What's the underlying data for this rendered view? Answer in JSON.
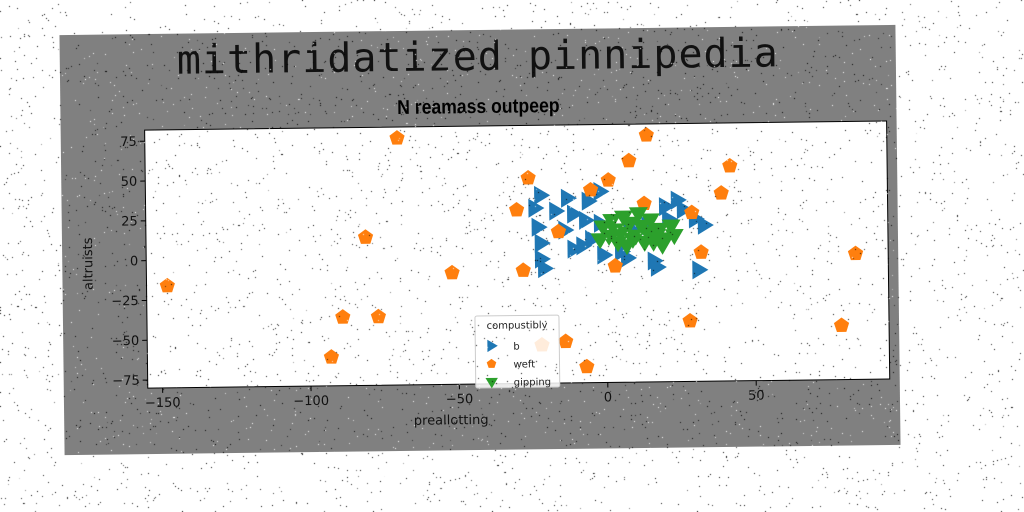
{
  "figure": {
    "suptitle": "mithridatized pinnipedia",
    "background": "#808080"
  },
  "chart_data": {
    "type": "scatter",
    "title": "N reamass outpeep",
    "xlabel": "preallotting",
    "ylabel": "altruists",
    "xlim": [
      -155,
      95
    ],
    "ylim": [
      -80,
      82
    ],
    "xticks": [
      -150,
      -100,
      -50,
      0,
      50
    ],
    "yticks": [
      -75,
      -50,
      -25,
      0,
      25,
      50,
      75
    ],
    "grid": false,
    "legend": {
      "title": "compustibly",
      "placement": "lower-center"
    },
    "series": [
      {
        "name": "b",
        "marker": "triangle-right",
        "color": "#1f77b4",
        "points": [
          [
            -22,
            38
          ],
          [
            -13,
            36
          ],
          [
            -6,
            34
          ],
          [
            -2,
            40
          ],
          [
            -24,
            30
          ],
          [
            -17,
            28
          ],
          [
            -11,
            26
          ],
          [
            -23,
            18
          ],
          [
            -14,
            16
          ],
          [
            -7,
            22
          ],
          [
            -2,
            20
          ],
          [
            -22,
            8
          ],
          [
            -11,
            4
          ],
          [
            -8,
            6
          ],
          [
            -22,
            -2
          ],
          [
            -21,
            -8
          ],
          [
            -1,
            0
          ],
          [
            7,
            -2
          ],
          [
            16,
            -4
          ],
          [
            17,
            -8
          ],
          [
            5,
            2
          ],
          [
            8,
            20
          ],
          [
            14,
            18
          ],
          [
            20,
            30
          ],
          [
            24,
            34
          ],
          [
            26,
            28
          ],
          [
            21,
            22
          ],
          [
            30,
            22
          ],
          [
            33,
            18
          ],
          [
            31,
            -10
          ],
          [
            10,
            14
          ],
          [
            -5,
            10
          ]
        ]
      },
      {
        "name": "weft",
        "marker": "pentagon",
        "color": "#ff7f0e",
        "points": [
          [
            -70,
            75
          ],
          [
            14,
            75
          ],
          [
            -26,
            49
          ],
          [
            1,
            47
          ],
          [
            8,
            59
          ],
          [
            -5,
            41
          ],
          [
            42,
            55
          ],
          [
            39,
            38
          ],
          [
            -30,
            29
          ],
          [
            -16,
            15
          ],
          [
            13,
            32
          ],
          [
            29,
            26
          ],
          [
            -81,
            13
          ],
          [
            32,
            1
          ],
          [
            -148,
            -16
          ],
          [
            -52,
            -10
          ],
          [
            -28,
            -9
          ],
          [
            3,
            -7
          ],
          [
            84,
            -1
          ],
          [
            -89,
            -37
          ],
          [
            -77,
            -37
          ],
          [
            28,
            -42
          ],
          [
            79,
            -46
          ],
          [
            -22,
            -56
          ],
          [
            -14,
            -54
          ],
          [
            -93,
            -62
          ],
          [
            -7,
            -70
          ]
        ]
      },
      {
        "name": "gipping",
        "marker": "triangle-down",
        "color": "#2ca02c",
        "points": [
          [
            -1,
            18
          ],
          [
            2,
            22
          ],
          [
            5,
            14
          ],
          [
            8,
            20
          ],
          [
            10,
            12
          ],
          [
            12,
            18
          ],
          [
            15,
            22
          ],
          [
            18,
            16
          ],
          [
            20,
            10
          ],
          [
            -2,
            10
          ],
          [
            4,
            8
          ],
          [
            7,
            6
          ],
          [
            13,
            8
          ],
          [
            17,
            12
          ],
          [
            22,
            18
          ],
          [
            6,
            24
          ],
          [
            11,
            26
          ],
          [
            16,
            8
          ],
          [
            3,
            16
          ],
          [
            9,
            10
          ],
          [
            14,
            14
          ],
          [
            19,
            6
          ],
          [
            1,
            12
          ],
          [
            23,
            12
          ]
        ]
      }
    ]
  }
}
